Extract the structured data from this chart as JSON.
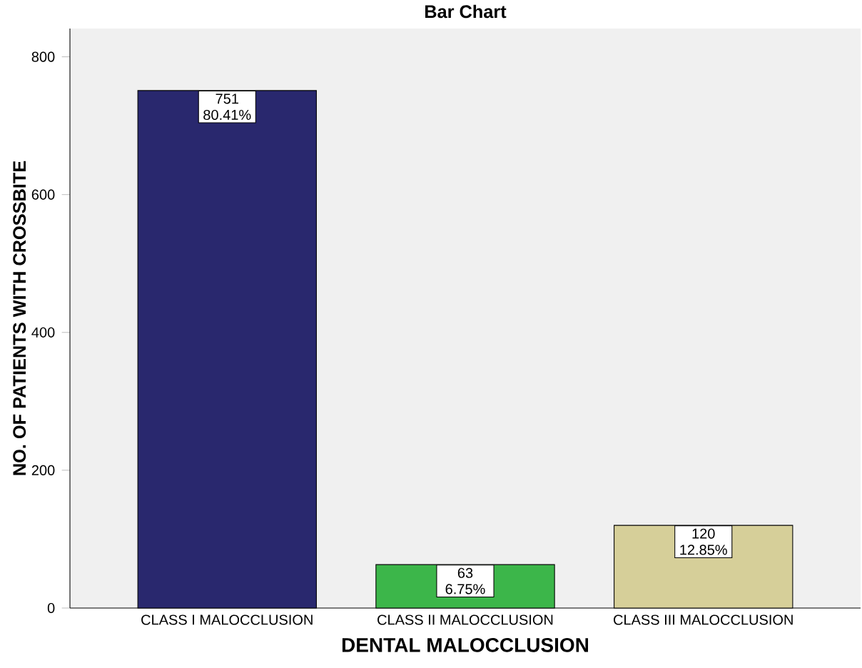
{
  "chart_data": {
    "type": "bar",
    "title": "Bar Chart",
    "xlabel": "DENTAL MALOCCLUSION",
    "ylabel": "NO. OF PATIENTS WITH CROSSBITE",
    "categories": [
      "CLASS I MALOCCLUSION",
      "CLASS II MALOCCLUSION",
      "CLASS III MALOCCLUSION"
    ],
    "values": [
      751,
      63,
      120
    ],
    "colors": [
      "#29286e",
      "#3cb64a",
      "#d6cf99"
    ],
    "value_labels": [
      "751 80.41%",
      "63 6.75%",
      "120 12.85%"
    ],
    "ylim": [
      0,
      841
    ],
    "yticks": [
      0,
      200,
      400,
      600,
      800
    ],
    "grid": false
  }
}
